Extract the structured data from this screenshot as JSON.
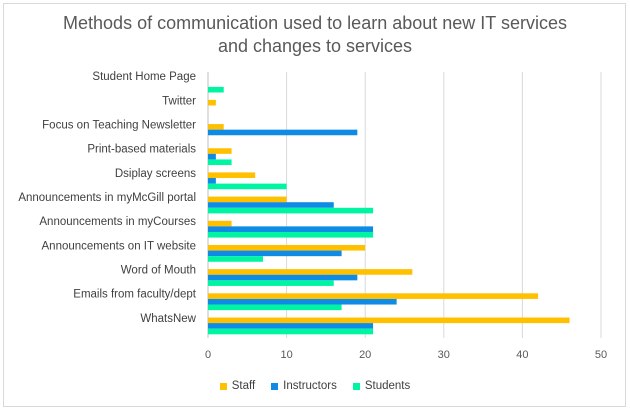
{
  "chart_data": {
    "type": "bar",
    "orientation": "horizontal",
    "title_lines": [
      "Methods of communication used to learn about new IT services",
      "and changes to services"
    ],
    "categories": [
      "Student Home Page",
      "Twitter",
      "Focus on Teaching Newsletter",
      "Print-based materials",
      "Dsiplay screens",
      "Announcements in myMcGill portal",
      "Announcements in myCourses",
      "Announcements on IT website",
      "Word of Mouth",
      "Emails from faculty/dept",
      "WhatsNew"
    ],
    "series": [
      {
        "name": "Staff",
        "color": "#ffc000",
        "values": [
          0,
          1,
          2,
          3,
          6,
          10,
          3,
          20,
          26,
          42,
          46
        ]
      },
      {
        "name": "Instructors",
        "color": "#0f8be6",
        "values": [
          0,
          0,
          19,
          1,
          1,
          16,
          21,
          17,
          19,
          24,
          21
        ]
      },
      {
        "name": "Students",
        "color": "#00f5a3",
        "values": [
          2,
          0,
          0,
          3,
          10,
          21,
          21,
          7,
          16,
          17,
          21
        ]
      }
    ],
    "xlim": [
      0,
      50
    ],
    "x_ticks": [
      "0",
      "10",
      "20",
      "30",
      "40",
      "50"
    ],
    "grid": "vertical",
    "legend_position": "bottom"
  }
}
